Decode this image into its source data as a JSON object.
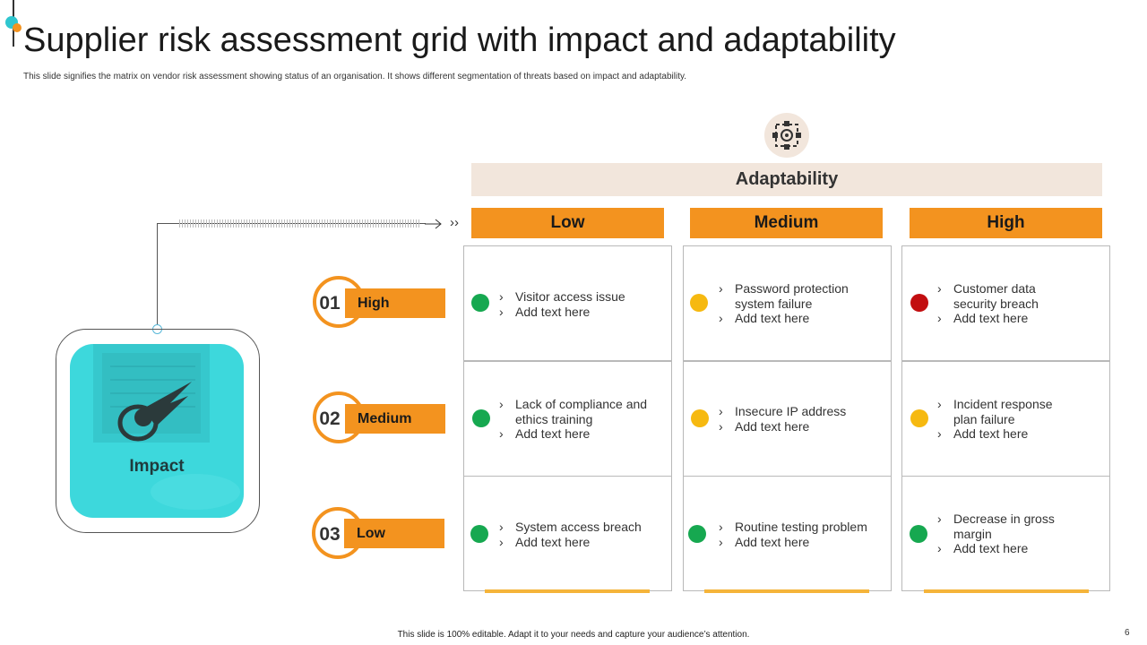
{
  "title": "Supplier risk assessment grid with impact and adaptability",
  "subtitle": "This slide signifies the matrix on vendor risk assessment showing status of an organisation. It shows different segmentation of threats based on impact and adaptability.",
  "adaptability": {
    "label": "Adaptability",
    "icon": "network-settings-icon",
    "columns": [
      "Low",
      "Medium",
      "High"
    ]
  },
  "impact": {
    "label": "Impact",
    "icon": "comet-icon",
    "rows": [
      {
        "number": "01",
        "label": "High"
      },
      {
        "number": "02",
        "label": "Medium"
      },
      {
        "number": "03",
        "label": "Low"
      }
    ]
  },
  "grid": [
    [
      {
        "status": "green",
        "items": [
          "Visitor access issue",
          "Add text here"
        ]
      },
      {
        "status": "amber",
        "items": [
          "Password protection system failure",
          "Add text here"
        ]
      },
      {
        "status": "red",
        "items": [
          "Customer data security breach",
          "Add text here"
        ]
      }
    ],
    [
      {
        "status": "green",
        "items": [
          "Lack of compliance and ethics training",
          "Add text here"
        ]
      },
      {
        "status": "amber",
        "items": [
          "Insecure IP address",
          "Add text here"
        ]
      },
      {
        "status": "amber",
        "items": [
          "Incident response plan failure",
          "Add text here"
        ]
      }
    ],
    [
      {
        "status": "green",
        "items": [
          "System access breach",
          "Add text here"
        ]
      },
      {
        "status": "green",
        "items": [
          "Routine testing problem",
          "Add text here"
        ]
      },
      {
        "status": "green",
        "items": [
          "Decrease in gross margin",
          "Add text here"
        ]
      }
    ]
  ],
  "colors": {
    "accent": "#f3931f",
    "teal": "#3dd8dc",
    "green": "#16a850",
    "amber": "#f6b910",
    "red": "#c20e10"
  },
  "footer": "This slide is 100% editable. Adapt it to your needs and capture your audience’s attention.",
  "page_number": "6"
}
